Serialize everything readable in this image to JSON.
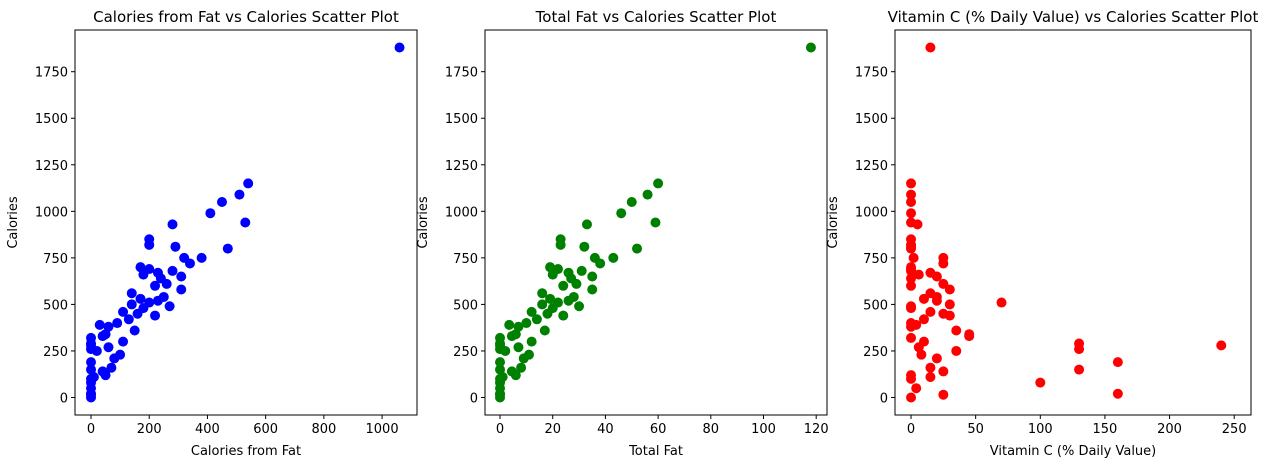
{
  "chart_data": [
    {
      "type": "scatter",
      "title": "Calories from Fat vs Calories Scatter Plot",
      "xlabel": "Calories from Fat",
      "ylabel": "Calories",
      "color": "#0000ff",
      "x": [
        1060,
        540,
        510,
        450,
        410,
        530,
        280,
        200,
        200,
        290,
        470,
        380,
        320,
        340,
        170,
        200,
        280,
        230,
        180,
        310,
        240,
        260,
        220,
        310,
        140,
        250,
        170,
        230,
        200,
        140,
        270,
        180,
        110,
        160,
        220,
        130,
        90,
        30,
        60,
        150,
        50,
        40,
        0,
        110,
        0,
        0,
        60,
        0,
        20,
        100,
        80,
        0,
        70,
        0,
        40,
        50,
        10,
        0,
        0,
        0,
        0,
        0,
        0
      ],
      "y": [
        1880,
        1150,
        1090,
        1050,
        990,
        940,
        930,
        850,
        820,
        810,
        800,
        750,
        750,
        720,
        700,
        690,
        680,
        670,
        660,
        650,
        640,
        610,
        600,
        580,
        560,
        540,
        530,
        520,
        510,
        500,
        490,
        480,
        460,
        450,
        440,
        420,
        400,
        390,
        380,
        360,
        340,
        330,
        320,
        300,
        290,
        280,
        270,
        260,
        250,
        230,
        210,
        190,
        160,
        150,
        140,
        120,
        110,
        100,
        80,
        50,
        20,
        15,
        0
      ],
      "xlim": [
        -55,
        1120
      ],
      "ylim": [
        -94,
        1974
      ],
      "xticks": [
        0,
        200,
        400,
        600,
        800,
        1000
      ],
      "yticks": [
        0,
        250,
        500,
        750,
        1000,
        1250,
        1500,
        1750
      ]
    },
    {
      "type": "scatter",
      "title": "Total Fat vs Calories Scatter Plot",
      "xlabel": "Total Fat",
      "ylabel": "Calories",
      "color": "#008000",
      "x": [
        118,
        60,
        56,
        50,
        46,
        59,
        33,
        23,
        23,
        32,
        52,
        43,
        36,
        38,
        19,
        22,
        31,
        26,
        20,
        35,
        27,
        29,
        24,
        35,
        16,
        28,
        19,
        26,
        22,
        16,
        30,
        20,
        12,
        18,
        24,
        14,
        10,
        3.5,
        7,
        17,
        6,
        4.5,
        0,
        12,
        0,
        0,
        7,
        0,
        2,
        11,
        9,
        0,
        8,
        0,
        4.5,
        6,
        1,
        0,
        0,
        0,
        0,
        0,
        0
      ],
      "y": [
        1880,
        1150,
        1090,
        1050,
        990,
        940,
        930,
        850,
        820,
        810,
        800,
        750,
        750,
        720,
        700,
        690,
        680,
        670,
        660,
        650,
        640,
        610,
        600,
        580,
        560,
        540,
        530,
        520,
        510,
        500,
        490,
        480,
        460,
        450,
        440,
        420,
        400,
        390,
        380,
        360,
        340,
        330,
        320,
        300,
        290,
        280,
        270,
        260,
        250,
        230,
        210,
        190,
        160,
        150,
        140,
        120,
        110,
        100,
        80,
        50,
        20,
        15,
        0
      ],
      "xlim": [
        -5.7,
        124.1
      ],
      "ylim": [
        -94,
        1974
      ],
      "xticks": [
        0,
        20,
        40,
        60,
        80,
        100,
        120
      ],
      "yticks": [
        0,
        250,
        500,
        750,
        1000,
        1250,
        1500,
        1750
      ]
    },
    {
      "type": "scatter",
      "title": "Vitamin C (% Daily Value) vs Calories Scatter Plot",
      "xlabel": "Vitamin C (% Daily Value)",
      "ylabel": "Calories",
      "color": "#ff0000",
      "x": [
        15,
        0,
        0,
        0,
        0,
        0,
        5,
        0,
        0,
        0,
        0,
        2,
        25,
        25,
        0,
        0,
        0,
        15,
        6,
        20,
        0,
        25,
        0,
        30,
        15,
        20,
        10,
        20,
        70,
        30,
        0,
        0,
        15,
        25,
        30,
        10,
        0,
        4,
        0,
        35,
        45,
        45,
        0,
        10,
        130,
        240,
        6,
        130,
        35,
        8,
        20,
        160,
        15,
        130,
        25,
        0,
        15,
        0,
        100,
        4,
        160,
        25,
        0
      ],
      "y": [
        1880,
        1150,
        1090,
        1050,
        990,
        940,
        930,
        850,
        820,
        810,
        800,
        750,
        750,
        720,
        700,
        690,
        680,
        670,
        660,
        650,
        640,
        610,
        600,
        580,
        560,
        540,
        530,
        520,
        510,
        500,
        490,
        480,
        460,
        450,
        440,
        420,
        400,
        390,
        380,
        360,
        340,
        330,
        320,
        300,
        290,
        280,
        270,
        260,
        250,
        230,
        210,
        190,
        160,
        150,
        140,
        120,
        110,
        100,
        80,
        50,
        20,
        15,
        0
      ],
      "xlim": [
        -12.4,
        263
      ],
      "ylim": [
        -94,
        1974
      ],
      "xticks": [
        0,
        50,
        100,
        150,
        200,
        250
      ],
      "yticks": [
        0,
        250,
        500,
        750,
        1000,
        1250,
        1500,
        1750
      ]
    }
  ]
}
